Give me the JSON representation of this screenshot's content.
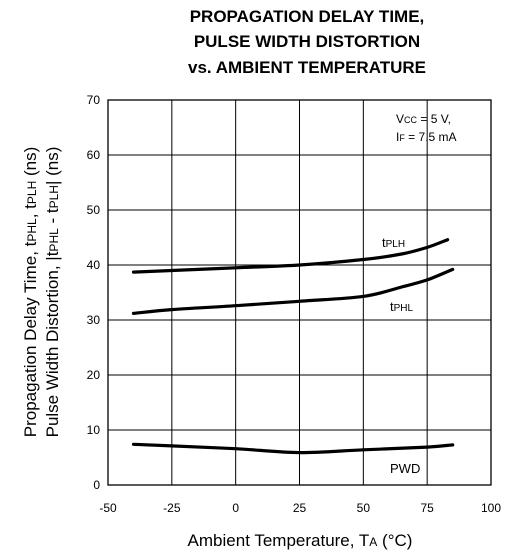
{
  "chart_data": {
    "type": "line",
    "title": [
      "PROPAGATION DELAY TIME,",
      "PULSE WIDTH DISTORTION",
      "vs. AMBIENT TEMPERATURE"
    ],
    "xlabel": "Ambient Temperature, TA (°C)",
    "ylabel": [
      "Propagation Delay Time, tPHL, tPLH (ns)",
      "Pulse Width Distortion, |tPHL - tPLH| (ns)"
    ],
    "xlim": [
      -50,
      100
    ],
    "ylim": [
      0,
      70
    ],
    "x_ticks": [
      "-50",
      "-25",
      "0",
      "25",
      "50",
      "75",
      "100"
    ],
    "y_ticks": [
      "0",
      "10",
      "20",
      "30",
      "40",
      "50",
      "60",
      "70"
    ],
    "grid": true,
    "annotations": [
      "VCC = 5 V,",
      "IF = 7.5 mA"
    ],
    "series": [
      {
        "name": "tPLH",
        "x": [
          -40,
          -25,
          0,
          25,
          50,
          65,
          75,
          83
        ],
        "y": [
          38.7,
          39.0,
          39.5,
          40.0,
          41.0,
          42.0,
          43.2,
          44.6
        ]
      },
      {
        "name": "tPHL",
        "x": [
          -40,
          -25,
          0,
          25,
          50,
          65,
          75,
          85
        ],
        "y": [
          31.2,
          31.9,
          32.6,
          33.4,
          34.3,
          36.0,
          37.3,
          39.2
        ]
      },
      {
        "name": "PWD",
        "x": [
          -40,
          -25,
          0,
          25,
          50,
          75,
          85
        ],
        "y": [
          7.4,
          7.1,
          6.6,
          5.9,
          6.4,
          6.9,
          7.3
        ]
      }
    ]
  }
}
